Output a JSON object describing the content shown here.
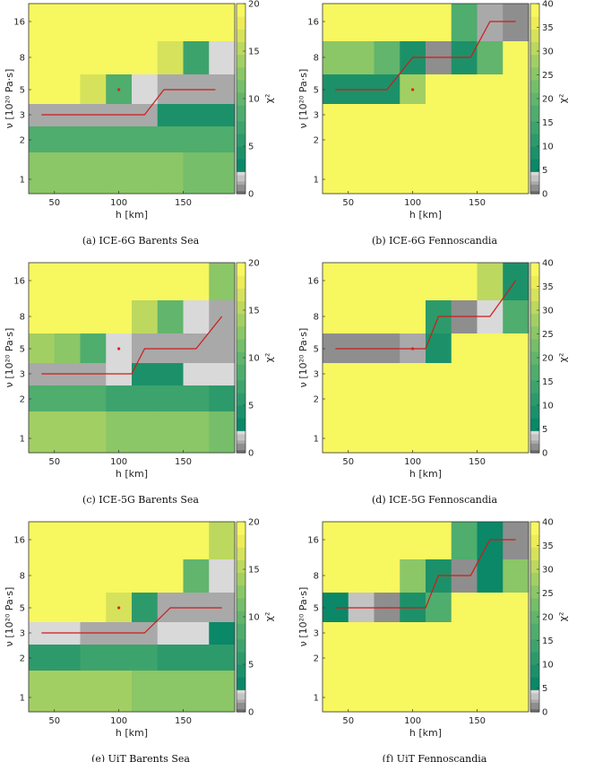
{
  "colors": {
    "yellow": "#f7f760",
    "colormap_green": [
      "#0a8867",
      "#1c9169",
      "#2d9a6b",
      "#3da36d",
      "#4fad6d",
      "#62b56c",
      "#76be6a",
      "#8bc667",
      "#a2cf63",
      "#bcd85f",
      "#d6e25b",
      "#eeec56",
      "#f7f760"
    ],
    "colormap_gray": [
      "#d9d9d9",
      "#c3c3c3",
      "#a9a9a9",
      "#8e8e8e",
      "#6f6f6f"
    ],
    "path_line": "#d11a1a",
    "optimum_marker": "#e0201f"
  },
  "chart_data": [
    {
      "id": "a",
      "type": "heatmap",
      "caption": "(a) ICE-6G Barents Sea",
      "xlabel": "h [km]",
      "ylabel": "ν [10²⁰ Pa·s]",
      "colorbar_label": "χ²",
      "x_ticks": [
        50,
        100,
        150
      ],
      "y_ticks": [
        1,
        2,
        3,
        5,
        8,
        16
      ],
      "colorbar_ticks": [
        0,
        5,
        10,
        15,
        20
      ],
      "clim": [
        0,
        20
      ],
      "rows": [
        "16",
        "8",
        "5",
        "3",
        "2",
        "1"
      ],
      "cols": [
        40,
        60,
        80,
        100,
        120,
        140,
        160,
        180
      ],
      "cells": [
        [
          20,
          20,
          20,
          20,
          20,
          20,
          20,
          20
        ],
        [
          20,
          20,
          20,
          20,
          20,
          16,
          7,
          2
        ],
        [
          20,
          20,
          16,
          8,
          2,
          1,
          1,
          1
        ],
        [
          1,
          1,
          1,
          1,
          1,
          5,
          5,
          5
        ],
        [
          8,
          8,
          8,
          8,
          8,
          8,
          8,
          8
        ],
        [
          12,
          12,
          12,
          12,
          12,
          12,
          11,
          11
        ]
      ],
      "cell_split_y": [
        16,
        8,
        5,
        3,
        2,
        1
      ],
      "path_h": [
        40,
        70,
        100,
        110,
        120,
        135,
        150,
        160,
        175
      ],
      "path_nu": [
        3,
        3,
        3,
        3,
        3,
        5,
        5,
        5,
        5
      ],
      "optimum": {
        "h": 100,
        "nu": 5
      }
    },
    {
      "id": "b",
      "type": "heatmap",
      "caption": "(b) ICE-6G Fennoscandia",
      "xlabel": "h [km]",
      "ylabel": "ν [10²⁰ Pa·s]",
      "colorbar_label": "χ²",
      "x_ticks": [
        50,
        100,
        150
      ],
      "y_ticks": [
        1,
        2,
        3,
        5,
        8,
        16
      ],
      "colorbar_ticks": [
        0,
        5,
        10,
        15,
        20,
        25,
        30,
        35,
        40
      ],
      "clim": [
        0,
        40
      ],
      "rows": [
        "16",
        "8",
        "5",
        "3",
        "2",
        "1"
      ],
      "cols": [
        40,
        60,
        80,
        100,
        120,
        140,
        160,
        180
      ],
      "cells": [
        [
          40,
          40,
          40,
          40,
          38,
          16,
          2,
          1
        ],
        [
          26,
          24,
          20,
          8,
          1,
          8,
          20,
          40
        ],
        [
          8,
          8,
          10,
          28,
          40,
          40,
          40,
          40
        ],
        [
          40,
          40,
          40,
          40,
          40,
          40,
          40,
          40
        ],
        [
          40,
          40,
          40,
          40,
          40,
          40,
          40,
          40
        ],
        [
          40,
          40,
          40,
          40,
          40,
          40,
          40,
          40
        ]
      ],
      "path_h": [
        40,
        80,
        100,
        110,
        130,
        145,
        160,
        180
      ],
      "path_nu": [
        5,
        5,
        8,
        8,
        8,
        8,
        16,
        16
      ],
      "optimum": {
        "h": 100,
        "nu": 5
      }
    },
    {
      "id": "c",
      "type": "heatmap",
      "caption": "(c) ICE-5G Barents Sea",
      "xlabel": "h [km]",
      "ylabel": "ν [10²⁰ Pa·s]",
      "colorbar_label": "χ²",
      "x_ticks": [
        50,
        100,
        150
      ],
      "y_ticks": [
        1,
        2,
        3,
        5,
        8,
        16
      ],
      "colorbar_ticks": [
        0,
        5,
        10,
        15,
        20
      ],
      "clim": [
        0,
        20
      ],
      "rows": [
        "16",
        "8",
        "5",
        "3",
        "2",
        "1"
      ],
      "cols": [
        40,
        60,
        80,
        100,
        120,
        140,
        160,
        180
      ],
      "cells": [
        [
          20,
          20,
          20,
          20,
          20,
          20,
          19,
          12
        ],
        [
          20,
          20,
          20,
          20,
          15,
          10,
          2,
          1
        ],
        [
          14,
          13,
          8,
          2,
          1,
          1,
          1,
          1
        ],
        [
          1,
          1,
          1,
          2,
          4,
          5,
          2,
          2
        ],
        [
          8,
          8,
          9,
          7,
          7,
          7,
          7,
          6
        ],
        [
          14,
          14,
          14,
          13,
          13,
          12,
          12,
          11
        ]
      ],
      "path_h": [
        40,
        100,
        110,
        120,
        130,
        160,
        180
      ],
      "path_nu": [
        3,
        3,
        3,
        5,
        5,
        5,
        8
      ],
      "optimum": {
        "h": 100,
        "nu": 5
      }
    },
    {
      "id": "d",
      "type": "heatmap",
      "caption": "(d) ICE-5G Fennoscandia",
      "xlabel": "h [km]",
      "ylabel": "ν [10²⁰ Pa·s]",
      "colorbar_label": "χ²",
      "x_ticks": [
        50,
        100,
        150
      ],
      "y_ticks": [
        1,
        2,
        3,
        5,
        8,
        16
      ],
      "colorbar_ticks": [
        0,
        5,
        10,
        15,
        20,
        25,
        30,
        35,
        40
      ],
      "clim": [
        0,
        40
      ],
      "rows": [
        "16",
        "8",
        "5",
        "3",
        "2",
        "1"
      ],
      "cols": [
        40,
        60,
        80,
        100,
        120,
        140,
        160,
        180
      ],
      "cells": [
        [
          40,
          40,
          40,
          40,
          40,
          40,
          30,
          8
        ],
        [
          40,
          40,
          40,
          38,
          12,
          1,
          4,
          16
        ],
        [
          1,
          1,
          1,
          2,
          10,
          40,
          40,
          40
        ],
        [
          40,
          40,
          40,
          40,
          40,
          40,
          40,
          40
        ],
        [
          40,
          40,
          40,
          40,
          40,
          40,
          40,
          40
        ],
        [
          40,
          40,
          40,
          40,
          40,
          40,
          40,
          40
        ]
      ],
      "path_h": [
        40,
        100,
        110,
        120,
        155,
        160,
        180
      ],
      "path_nu": [
        5,
        5,
        5,
        8,
        8,
        8,
        16
      ],
      "optimum": {
        "h": 100,
        "nu": 5
      }
    },
    {
      "id": "e",
      "type": "heatmap",
      "caption": "(e) UiT Barents Sea",
      "xlabel": "h [km]",
      "ylabel": "ν [10²⁰ Pa·s]",
      "colorbar_label": "χ²",
      "x_ticks": [
        50,
        100,
        150
      ],
      "y_ticks": [
        1,
        2,
        3,
        5,
        8,
        16
      ],
      "colorbar_ticks": [
        0,
        5,
        10,
        15,
        20
      ],
      "clim": [
        0,
        20
      ],
      "rows": [
        "16",
        "8",
        "5",
        "3",
        "2",
        "1"
      ],
      "cols": [
        40,
        60,
        80,
        100,
        120,
        140,
        160,
        180
      ],
      "cells": [
        [
          20,
          20,
          20,
          20,
          20,
          20,
          20,
          15
        ],
        [
          20,
          20,
          20,
          20,
          20,
          20,
          10,
          2
        ],
        [
          20,
          20,
          20,
          16,
          6,
          1,
          1,
          1
        ],
        [
          2,
          2,
          1,
          1,
          1,
          2,
          2,
          3
        ],
        [
          6,
          6,
          7,
          7,
          7,
          6,
          6,
          6
        ],
        [
          14,
          14,
          14,
          14,
          13,
          13,
          13,
          12
        ]
      ],
      "path_h": [
        40,
        80,
        110,
        120,
        140,
        160,
        180
      ],
      "path_nu": [
        3,
        3,
        3,
        3,
        5,
        5,
        5
      ],
      "optimum": {
        "h": 100,
        "nu": 5
      }
    },
    {
      "id": "f",
      "type": "heatmap",
      "caption": "(f) UiT Fennoscandia",
      "xlabel": "h [km]",
      "ylabel": "ν [10²⁰ Pa·s]",
      "colorbar_label": "χ²",
      "x_ticks": [
        50,
        100,
        150
      ],
      "y_ticks": [
        1,
        2,
        3,
        5,
        8,
        16
      ],
      "colorbar_ticks": [
        0,
        5,
        10,
        15,
        20,
        25,
        30,
        35,
        40
      ],
      "clim": [
        0,
        40
      ],
      "rows": [
        "16",
        "8",
        "5",
        "3",
        "2",
        "1"
      ],
      "cols": [
        40,
        60,
        80,
        100,
        120,
        140,
        160,
        180
      ],
      "cells": [
        [
          40,
          40,
          40,
          40,
          38,
          18,
          6,
          1
        ],
        [
          40,
          40,
          40,
          26,
          10,
          1,
          6,
          24
        ],
        [
          6,
          3,
          1,
          8,
          16,
          40,
          40,
          40
        ],
        [
          40,
          40,
          40,
          40,
          40,
          40,
          40,
          40
        ],
        [
          40,
          40,
          40,
          40,
          40,
          40,
          40,
          40
        ],
        [
          40,
          40,
          40,
          40,
          40,
          40,
          40,
          40
        ]
      ],
      "path_h": [
        40,
        100,
        110,
        120,
        140,
        145,
        160,
        180
      ],
      "path_nu": [
        5,
        5,
        5,
        8,
        8,
        8,
        16,
        16
      ],
      "optimum": null
    }
  ]
}
